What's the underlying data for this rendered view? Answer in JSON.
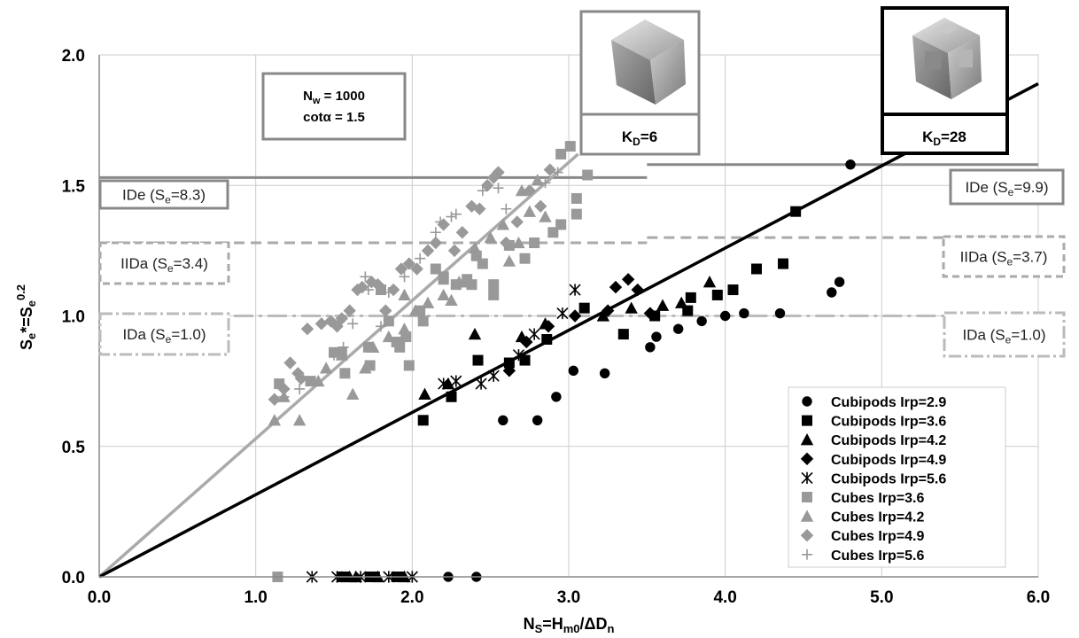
{
  "chart_data": {
    "type": "scatter",
    "xlabel": "N_S=H_m0/ΔD_n",
    "ylabel": "S_e*=S_e^0.2",
    "xlim": [
      0,
      6
    ],
    "ylim": [
      0,
      2
    ],
    "x_ticks": [
      "0.0",
      "1.0",
      "2.0",
      "3.0",
      "4.0",
      "5.0",
      "6.0"
    ],
    "y_ticks": [
      "0.0",
      "0.5",
      "1.0",
      "1.5",
      "2.0"
    ],
    "grid": true,
    "legend_position": "bottom-right",
    "info_box": {
      "line1_main": "N",
      "line1_sub": "w",
      "line1_rest": " = 1000",
      "line2": "cotα = 1.5"
    },
    "kd_labels": [
      {
        "main": "K",
        "sub": "D",
        "rest": "=6",
        "color": "#888888"
      },
      {
        "main": "K",
        "sub": "D",
        "rest": "=28",
        "color": "#000000"
      }
    ],
    "fit_lines": [
      {
        "name": "cubes-fit",
        "x": [
          0,
          3.06
        ],
        "y": [
          0,
          1.62
        ],
        "color": "#aaaaaa"
      },
      {
        "name": "cubipods-fit",
        "x": [
          0,
          6.0
        ],
        "y": [
          0,
          1.89
        ],
        "color": "#000000"
      }
    ],
    "levels": [
      {
        "id": "IDe-cubes",
        "y": 1.53,
        "x": [
          0,
          3.5
        ],
        "style": "solid",
        "color": "#888888",
        "label": {
          "main": "IDe (S",
          "sub": "e",
          "rest": "=8.3)"
        }
      },
      {
        "id": "IDe-cubipods",
        "y": 1.58,
        "x": [
          3.5,
          6.0
        ],
        "style": "solid",
        "color": "#888888",
        "label": {
          "main": "IDe (S",
          "sub": "e",
          "rest": "=9.9)"
        }
      },
      {
        "id": "IIDa-cubes",
        "y": 1.28,
        "x": [
          0,
          3.5
        ],
        "style": "dashed",
        "color": "#aaaaaa",
        "label": {
          "main": "IIDa (S",
          "sub": "e",
          "rest": "=3.4)"
        }
      },
      {
        "id": "IIDa-cubipods",
        "y": 1.3,
        "x": [
          3.5,
          6.0
        ],
        "style": "dashed",
        "color": "#aaaaaa",
        "label": {
          "main": "IIDa (S",
          "sub": "e",
          "rest": "=3.7)"
        }
      },
      {
        "id": "IDa-cubes",
        "y": 1.0,
        "x": [
          0,
          3.5
        ],
        "style": "dashdot",
        "color": "#bbbbbb",
        "label": {
          "main": "IDa (S",
          "sub": "e",
          "rest": "=1.0)"
        }
      },
      {
        "id": "IDa-cubipods",
        "y": 1.0,
        "x": [
          3.5,
          6.0
        ],
        "style": "dashdot",
        "color": "#bbbbbb",
        "label": {
          "main": "IDa (S",
          "sub": "e",
          "rest": "=1.0)"
        }
      }
    ],
    "series": [
      {
        "name": "Cubipods Irp=2.9",
        "marker": "circle",
        "color": "#000000",
        "points": [
          [
            2.23,
            0
          ],
          [
            2.41,
            0
          ],
          [
            2.58,
            0.6
          ],
          [
            2.8,
            0.6
          ],
          [
            2.92,
            0.69
          ],
          [
            3.03,
            0.79
          ],
          [
            3.23,
            0.78
          ],
          [
            3.52,
            0.88
          ],
          [
            3.56,
            0.92
          ],
          [
            3.7,
            0.95
          ],
          [
            3.85,
            0.98
          ],
          [
            4.0,
            1.0
          ],
          [
            4.12,
            1.01
          ],
          [
            4.35,
            1.01
          ],
          [
            4.68,
            1.09
          ],
          [
            4.73,
            1.13
          ],
          [
            4.8,
            1.58
          ]
        ]
      },
      {
        "name": "Cubipods Irp=3.6",
        "marker": "square",
        "color": "#000000",
        "points": [
          [
            1.55,
            0
          ],
          [
            1.57,
            0
          ],
          [
            1.73,
            0
          ],
          [
            1.75,
            0
          ],
          [
            1.76,
            0
          ],
          [
            1.9,
            0
          ],
          [
            1.92,
            0
          ],
          [
            2.07,
            0.6
          ],
          [
            2.25,
            0.69
          ],
          [
            2.42,
            0.83
          ],
          [
            2.62,
            0.82
          ],
          [
            2.72,
            0.83
          ],
          [
            2.86,
            0.91
          ],
          [
            3.1,
            1.03
          ],
          [
            3.35,
            0.93
          ],
          [
            3.55,
            1.0
          ],
          [
            3.76,
            1.02
          ],
          [
            3.78,
            1.07
          ],
          [
            3.95,
            1.08
          ],
          [
            4.05,
            1.1
          ],
          [
            4.2,
            1.18
          ],
          [
            4.37,
            1.2
          ],
          [
            4.45,
            1.4
          ]
        ]
      },
      {
        "name": "Cubipods Irp=4.2",
        "marker": "triangle",
        "color": "#000000",
        "points": [
          [
            1.6,
            0
          ],
          [
            1.64,
            0
          ],
          [
            1.78,
            0
          ],
          [
            1.95,
            0
          ],
          [
            2.08,
            0.7
          ],
          [
            2.23,
            0.74
          ],
          [
            2.4,
            0.93
          ],
          [
            2.7,
            0.92
          ],
          [
            2.85,
            0.97
          ],
          [
            3.22,
            1.0
          ],
          [
            3.4,
            1.03
          ],
          [
            3.6,
            1.04
          ],
          [
            3.72,
            1.05
          ],
          [
            3.9,
            1.13
          ]
        ]
      },
      {
        "name": "Cubipods Irp=4.9",
        "marker": "diamond",
        "color": "#000000",
        "points": [
          [
            2.62,
            0.79
          ],
          [
            2.73,
            0.9
          ],
          [
            2.87,
            0.96
          ],
          [
            3.04,
            1.0
          ],
          [
            3.25,
            1.02
          ],
          [
            3.3,
            1.11
          ],
          [
            3.38,
            1.14
          ],
          [
            3.44,
            1.1
          ],
          [
            3.52,
            1.01
          ]
        ]
      },
      {
        "name": "Cubipods Irp=5.6",
        "marker": "asterisk",
        "color": "#000000",
        "points": [
          [
            1.36,
            0
          ],
          [
            1.52,
            0
          ],
          [
            1.67,
            0
          ],
          [
            1.85,
            0
          ],
          [
            2.0,
            0
          ],
          [
            2.2,
            0.74
          ],
          [
            2.28,
            0.75
          ],
          [
            2.44,
            0.74
          ],
          [
            2.52,
            0.77
          ],
          [
            2.68,
            0.85
          ],
          [
            2.78,
            0.93
          ],
          [
            2.96,
            1.01
          ],
          [
            3.04,
            1.1
          ]
        ]
      },
      {
        "name": "Cubes Irp=3.6",
        "marker": "square",
        "color": "#999999",
        "points": [
          [
            1.14,
            0
          ],
          [
            1.15,
            0.74
          ],
          [
            1.35,
            0.75
          ],
          [
            1.5,
            0.86
          ],
          [
            1.55,
            0.86
          ],
          [
            1.57,
            0.78
          ],
          [
            1.72,
            0.88
          ],
          [
            1.73,
            0.81
          ],
          [
            1.8,
            1.1
          ],
          [
            1.85,
            0.98
          ],
          [
            1.9,
            0.9
          ],
          [
            1.92,
            0.88
          ],
          [
            1.98,
            0.81
          ],
          [
            1.96,
            0.92
          ],
          [
            2.05,
            1.02
          ],
          [
            2.07,
            0.98
          ],
          [
            2.15,
            1.18
          ],
          [
            2.2,
            1.14
          ],
          [
            2.2,
            1.15
          ],
          [
            2.28,
            1.12
          ],
          [
            2.35,
            1.14
          ],
          [
            2.38,
            1.12
          ],
          [
            2.41,
            1.23
          ],
          [
            2.45,
            1.2
          ],
          [
            2.52,
            1.12
          ],
          [
            2.52,
            1.08
          ],
          [
            2.62,
            1.27
          ],
          [
            2.72,
            1.22
          ],
          [
            2.78,
            1.28
          ],
          [
            2.9,
            1.32
          ],
          [
            2.95,
            1.35
          ],
          [
            2.95,
            1.62
          ],
          [
            3.01,
            1.65
          ],
          [
            3.05,
            1.45
          ],
          [
            3.05,
            1.39
          ],
          [
            3.12,
            1.54
          ]
        ]
      },
      {
        "name": "Cubes Irp=4.2",
        "marker": "triangle",
        "color": "#999999",
        "points": [
          [
            1.12,
            0.6
          ],
          [
            1.18,
            0.69
          ],
          [
            1.28,
            0.6
          ],
          [
            1.4,
            0.75
          ],
          [
            1.45,
            0.8
          ],
          [
            1.55,
            0.85
          ],
          [
            1.62,
            0.7
          ],
          [
            1.7,
            0.8
          ],
          [
            1.75,
            0.88
          ],
          [
            1.85,
            0.92
          ],
          [
            1.95,
            0.95
          ],
          [
            1.95,
            1.08
          ],
          [
            2.02,
            1.02
          ],
          [
            2.1,
            1.05
          ],
          [
            2.2,
            1.08
          ],
          [
            2.25,
            1.06
          ],
          [
            2.3,
            1.13
          ],
          [
            2.33,
            1.13
          ],
          [
            2.4,
            1.26
          ],
          [
            2.5,
            1.3
          ],
          [
            2.58,
            1.35
          ],
          [
            2.62,
            1.21
          ],
          [
            2.68,
            1.28
          ],
          [
            2.7,
            1.48
          ],
          [
            2.75,
            1.4
          ],
          [
            2.8,
            1.52
          ],
          [
            2.85,
            1.38
          ]
        ]
      },
      {
        "name": "Cubes Irp=4.9",
        "marker": "diamond",
        "color": "#999999",
        "points": [
          [
            1.12,
            0.68
          ],
          [
            1.18,
            0.72
          ],
          [
            1.22,
            0.82
          ],
          [
            1.27,
            0.78
          ],
          [
            1.29,
            0.76
          ],
          [
            1.33,
            0.95
          ],
          [
            1.42,
            0.97
          ],
          [
            1.48,
            0.98
          ],
          [
            1.52,
            0.96
          ],
          [
            1.55,
            0.99
          ],
          [
            1.6,
            1.02
          ],
          [
            1.65,
            1.1
          ],
          [
            1.68,
            1.11
          ],
          [
            1.74,
            1.13
          ],
          [
            1.78,
            1.12
          ],
          [
            1.83,
            1.02
          ],
          [
            1.88,
            1.1
          ],
          [
            1.93,
            1.18
          ],
          [
            1.98,
            1.2
          ],
          [
            2.03,
            1.18
          ],
          [
            2.1,
            1.25
          ],
          [
            2.15,
            1.28
          ],
          [
            2.2,
            1.35
          ],
          [
            2.27,
            1.25
          ],
          [
            2.32,
            1.32
          ],
          [
            2.38,
            1.42
          ],
          [
            2.43,
            1.41
          ],
          [
            2.48,
            1.5
          ],
          [
            2.52,
            1.53
          ],
          [
            2.55,
            1.55
          ],
          [
            2.6,
            1.28
          ],
          [
            2.67,
            1.36
          ],
          [
            2.75,
            1.48
          ],
          [
            2.82,
            1.42
          ],
          [
            2.88,
            1.56
          ]
        ]
      },
      {
        "name": "Cubes Irp=5.6",
        "marker": "plus",
        "color": "#999999",
        "points": [
          [
            1.18,
            0.69
          ],
          [
            1.28,
            0.72
          ],
          [
            1.38,
            0.75
          ],
          [
            1.5,
            0.85
          ],
          [
            1.56,
            0.88
          ],
          [
            1.62,
            0.97
          ],
          [
            1.7,
            1.15
          ],
          [
            1.72,
            1.1
          ],
          [
            1.8,
            0.96
          ],
          [
            1.85,
            1.09
          ],
          [
            1.95,
            1.15
          ],
          [
            2.05,
            1.22
          ],
          [
            2.15,
            1.32
          ],
          [
            2.18,
            1.36
          ],
          [
            2.25,
            1.38
          ],
          [
            2.28,
            1.39
          ],
          [
            2.45,
            1.48
          ],
          [
            2.55,
            1.49
          ],
          [
            2.6,
            1.41
          ],
          [
            2.75,
            1.48
          ],
          [
            2.85,
            1.51
          ],
          [
            2.93,
            1.55
          ]
        ]
      }
    ]
  }
}
